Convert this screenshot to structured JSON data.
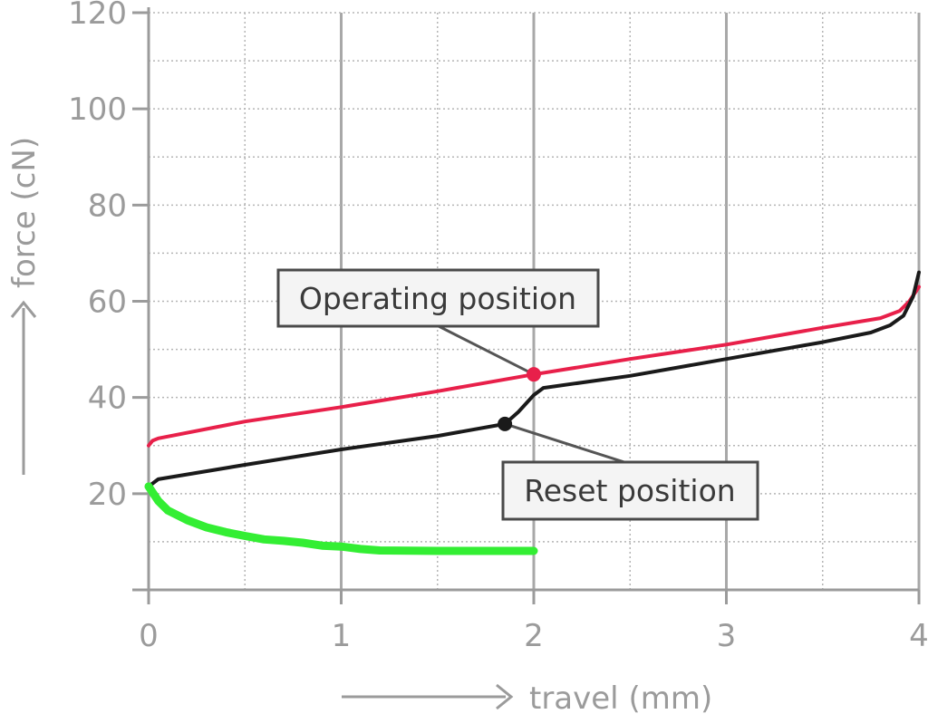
{
  "chart_data": {
    "type": "line",
    "xlabel": "travel (mm)",
    "ylabel": "force (cN)",
    "xlim": [
      0,
      4
    ],
    "ylim": [
      0,
      120
    ],
    "x_ticks": [
      0,
      1,
      2,
      3,
      4
    ],
    "y_ticks": [
      20,
      40,
      60,
      80,
      100,
      120
    ],
    "grid": true,
    "series": [
      {
        "color": "#e8204a",
        "x": [
          0,
          0.02,
          0.05,
          0.5,
          1.0,
          1.5,
          2.0,
          2.5,
          3.0,
          3.5,
          3.8,
          3.9,
          3.95,
          4.0
        ],
        "y": [
          30,
          31,
          31.5,
          35,
          38,
          41.3,
          44.8,
          48,
          51,
          54.5,
          56.5,
          58,
          60,
          63
        ]
      },
      {
        "color": "#1a1a1a",
        "x": [
          0,
          0.05,
          0.5,
          1.0,
          1.5,
          1.85,
          1.92,
          2.0,
          2.05,
          2.5,
          3.0,
          3.5,
          3.75,
          3.85,
          3.92,
          3.97,
          4.0
        ],
        "y": [
          21.5,
          23,
          26,
          29.2,
          32,
          34.5,
          37,
          40.5,
          42,
          44.5,
          48,
          51.5,
          53.5,
          55,
          57,
          61,
          66
        ]
      },
      {
        "color": "#33ee33",
        "x": [
          0,
          0.05,
          0.1,
          0.2,
          0.3,
          0.4,
          0.5,
          0.6,
          0.7,
          0.8,
          0.9,
          1.0,
          1.1,
          1.2,
          1.5,
          2.0
        ],
        "y": [
          21.5,
          18.5,
          16.5,
          14.5,
          13,
          12,
          11.2,
          10.5,
          10.2,
          9.8,
          9.2,
          9,
          8.5,
          8.2,
          8.1,
          8.1
        ]
      }
    ],
    "annotations": [
      {
        "text": "Operating position",
        "x": 2.0,
        "y": 44.8,
        "color": "#e8204a"
      },
      {
        "text": "Reset position",
        "x": 1.85,
        "y": 34.5,
        "color": "#1a1a1a"
      }
    ]
  }
}
